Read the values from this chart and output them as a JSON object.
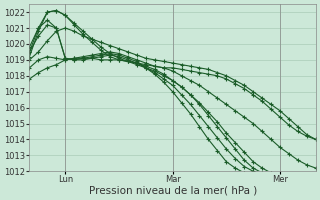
{
  "title": "",
  "xlabel": "Pression niveau de la mer( hPa )",
  "ylabel": "",
  "bg_color": "#cce8d8",
  "grid_color": "#aaccb8",
  "line_color": "#1a5c28",
  "ylim": [
    1012,
    1022.5
  ],
  "yticks": [
    1012,
    1013,
    1014,
    1015,
    1016,
    1017,
    1018,
    1019,
    1020,
    1021,
    1022
  ],
  "xtick_labels": [
    "Lun",
    "Mar",
    "Mer"
  ],
  "xtick_positions": [
    8,
    32,
    56
  ],
  "n_points": 65,
  "series": [
    {
      "points": [
        [
          0,
          1017.8
        ],
        [
          2,
          1018.2
        ],
        [
          4,
          1018.5
        ],
        [
          6,
          1018.7
        ],
        [
          8,
          1019.0
        ],
        [
          10,
          1019.1
        ],
        [
          12,
          1019.1
        ],
        [
          14,
          1019.1
        ],
        [
          16,
          1019.0
        ],
        [
          18,
          1019.0
        ],
        [
          20,
          1019.0
        ],
        [
          22,
          1018.9
        ],
        [
          24,
          1018.8
        ],
        [
          26,
          1018.7
        ],
        [
          28,
          1018.6
        ],
        [
          30,
          1018.5
        ],
        [
          32,
          1018.3
        ],
        [
          34,
          1018.0
        ],
        [
          36,
          1017.7
        ],
        [
          38,
          1017.4
        ],
        [
          40,
          1017.0
        ],
        [
          42,
          1016.6
        ],
        [
          44,
          1016.2
        ],
        [
          46,
          1015.8
        ],
        [
          48,
          1015.4
        ],
        [
          50,
          1015.0
        ],
        [
          52,
          1014.5
        ],
        [
          54,
          1014.0
        ],
        [
          56,
          1013.5
        ],
        [
          58,
          1013.1
        ],
        [
          60,
          1012.7
        ],
        [
          62,
          1012.4
        ],
        [
          64,
          1012.2
        ]
      ]
    },
    {
      "points": [
        [
          0,
          1018.5
        ],
        [
          2,
          1019.0
        ],
        [
          4,
          1019.2
        ],
        [
          6,
          1019.1
        ],
        [
          8,
          1019.0
        ],
        [
          10,
          1019.1
        ],
        [
          12,
          1019.2
        ],
        [
          14,
          1019.3
        ],
        [
          16,
          1019.4
        ],
        [
          18,
          1019.5
        ],
        [
          20,
          1019.4
        ],
        [
          22,
          1019.2
        ],
        [
          24,
          1019.0
        ],
        [
          26,
          1018.8
        ],
        [
          28,
          1018.6
        ],
        [
          30,
          1018.5
        ],
        [
          32,
          1018.5
        ],
        [
          34,
          1018.4
        ],
        [
          36,
          1018.3
        ],
        [
          38,
          1018.2
        ],
        [
          40,
          1018.1
        ],
        [
          42,
          1018.0
        ],
        [
          44,
          1017.8
        ],
        [
          46,
          1017.5
        ],
        [
          48,
          1017.2
        ],
        [
          50,
          1016.8
        ],
        [
          52,
          1016.4
        ],
        [
          54,
          1015.9
        ],
        [
          56,
          1015.4
        ],
        [
          58,
          1014.9
        ],
        [
          60,
          1014.5
        ],
        [
          62,
          1014.2
        ],
        [
          64,
          1014.0
        ]
      ]
    },
    {
      "points": [
        [
          0,
          1019.0
        ],
        [
          2,
          1019.5
        ],
        [
          4,
          1020.2
        ],
        [
          6,
          1020.8
        ],
        [
          8,
          1021.0
        ],
        [
          10,
          1020.8
        ],
        [
          12,
          1020.5
        ],
        [
          14,
          1020.3
        ],
        [
          16,
          1020.1
        ],
        [
          18,
          1019.9
        ],
        [
          20,
          1019.7
        ],
        [
          22,
          1019.5
        ],
        [
          24,
          1019.3
        ],
        [
          26,
          1019.1
        ],
        [
          28,
          1019.0
        ],
        [
          30,
          1018.9
        ],
        [
          32,
          1018.8
        ],
        [
          34,
          1018.7
        ],
        [
          36,
          1018.6
        ],
        [
          38,
          1018.5
        ],
        [
          40,
          1018.4
        ],
        [
          42,
          1018.2
        ],
        [
          44,
          1018.0
        ],
        [
          46,
          1017.7
        ],
        [
          48,
          1017.4
        ],
        [
          50,
          1017.0
        ],
        [
          52,
          1016.6
        ],
        [
          54,
          1016.2
        ],
        [
          56,
          1015.8
        ],
        [
          58,
          1015.3
        ],
        [
          60,
          1014.8
        ],
        [
          62,
          1014.3
        ],
        [
          64,
          1014.0
        ]
      ]
    },
    {
      "points": [
        [
          0,
          1019.5
        ],
        [
          2,
          1020.5
        ],
        [
          4,
          1021.2
        ],
        [
          6,
          1021.0
        ],
        [
          8,
          1019.1
        ],
        [
          10,
          1019.0
        ],
        [
          12,
          1019.0
        ],
        [
          14,
          1019.1
        ],
        [
          16,
          1019.2
        ],
        [
          18,
          1019.3
        ],
        [
          20,
          1019.2
        ],
        [
          22,
          1019.0
        ],
        [
          24,
          1018.8
        ],
        [
          26,
          1018.5
        ],
        [
          28,
          1018.2
        ],
        [
          30,
          1017.8
        ],
        [
          32,
          1017.4
        ],
        [
          34,
          1016.8
        ],
        [
          36,
          1016.2
        ],
        [
          38,
          1015.5
        ],
        [
          40,
          1014.8
        ],
        [
          42,
          1014.1
        ],
        [
          44,
          1013.4
        ],
        [
          46,
          1012.8
        ],
        [
          48,
          1012.3
        ],
        [
          50,
          1012.0
        ],
        [
          52,
          1011.8
        ],
        [
          54,
          1011.8
        ],
        [
          56,
          1011.8
        ],
        [
          58,
          1011.8
        ],
        [
          60,
          1011.8
        ],
        [
          62,
          1011.8
        ],
        [
          64,
          1011.8
        ]
      ]
    },
    {
      "points": [
        [
          0,
          1019.8
        ],
        [
          2,
          1021.0
        ],
        [
          4,
          1021.5
        ],
        [
          6,
          1021.0
        ],
        [
          8,
          1019.1
        ],
        [
          10,
          1019.0
        ],
        [
          12,
          1019.1
        ],
        [
          14,
          1019.2
        ],
        [
          16,
          1019.3
        ],
        [
          18,
          1019.4
        ],
        [
          20,
          1019.3
        ],
        [
          22,
          1019.1
        ],
        [
          24,
          1018.9
        ],
        [
          26,
          1018.5
        ],
        [
          28,
          1018.1
        ],
        [
          30,
          1017.6
        ],
        [
          32,
          1017.0
        ],
        [
          34,
          1016.3
        ],
        [
          36,
          1015.6
        ],
        [
          38,
          1014.8
        ],
        [
          40,
          1014.0
        ],
        [
          42,
          1013.3
        ],
        [
          44,
          1012.6
        ],
        [
          46,
          1012.2
        ],
        [
          48,
          1011.9
        ],
        [
          50,
          1011.8
        ],
        [
          52,
          1011.8
        ],
        [
          54,
          1011.8
        ],
        [
          56,
          1011.8
        ],
        [
          58,
          1011.8
        ],
        [
          60,
          1011.8
        ],
        [
          62,
          1011.8
        ],
        [
          64,
          1011.8
        ]
      ]
    },
    {
      "points": [
        [
          0,
          1019.2
        ],
        [
          2,
          1020.8
        ],
        [
          4,
          1022.0
        ],
        [
          6,
          1022.1
        ],
        [
          8,
          1021.8
        ],
        [
          10,
          1021.3
        ],
        [
          12,
          1020.8
        ],
        [
          14,
          1020.3
        ],
        [
          16,
          1019.8
        ],
        [
          18,
          1019.4
        ],
        [
          20,
          1019.1
        ],
        [
          22,
          1018.9
        ],
        [
          24,
          1018.7
        ],
        [
          26,
          1018.5
        ],
        [
          28,
          1018.3
        ],
        [
          30,
          1018.0
        ],
        [
          32,
          1017.7
        ],
        [
          34,
          1017.3
        ],
        [
          36,
          1016.8
        ],
        [
          38,
          1016.3
        ],
        [
          40,
          1015.7
        ],
        [
          42,
          1015.1
        ],
        [
          44,
          1014.4
        ],
        [
          46,
          1013.8
        ],
        [
          48,
          1013.2
        ],
        [
          50,
          1012.6
        ],
        [
          52,
          1012.2
        ],
        [
          54,
          1011.9
        ],
        [
          56,
          1011.8
        ],
        [
          58,
          1011.8
        ],
        [
          60,
          1011.8
        ],
        [
          62,
          1011.8
        ],
        [
          64,
          1011.8
        ]
      ]
    },
    {
      "points": [
        [
          0,
          1019.5
        ],
        [
          2,
          1021.0
        ],
        [
          4,
          1022.0
        ],
        [
          6,
          1022.1
        ],
        [
          8,
          1021.8
        ],
        [
          10,
          1021.2
        ],
        [
          12,
          1020.6
        ],
        [
          14,
          1020.1
        ],
        [
          16,
          1019.6
        ],
        [
          18,
          1019.2
        ],
        [
          20,
          1019.0
        ],
        [
          22,
          1018.9
        ],
        [
          24,
          1018.8
        ],
        [
          26,
          1018.6
        ],
        [
          28,
          1018.4
        ],
        [
          30,
          1018.1
        ],
        [
          32,
          1017.7
        ],
        [
          34,
          1017.3
        ],
        [
          36,
          1016.8
        ],
        [
          38,
          1016.2
        ],
        [
          40,
          1015.5
        ],
        [
          42,
          1014.8
        ],
        [
          44,
          1014.1
        ],
        [
          46,
          1013.4
        ],
        [
          48,
          1012.7
        ],
        [
          50,
          1012.2
        ],
        [
          52,
          1011.9
        ],
        [
          54,
          1011.8
        ],
        [
          56,
          1011.8
        ],
        [
          58,
          1011.8
        ],
        [
          60,
          1011.8
        ],
        [
          62,
          1011.8
        ],
        [
          64,
          1011.8
        ]
      ]
    }
  ],
  "marker": "+",
  "markersize": 2.5,
  "linewidth": 0.8,
  "xlabel_fontsize": 7.5,
  "tick_fontsize": 6.0
}
